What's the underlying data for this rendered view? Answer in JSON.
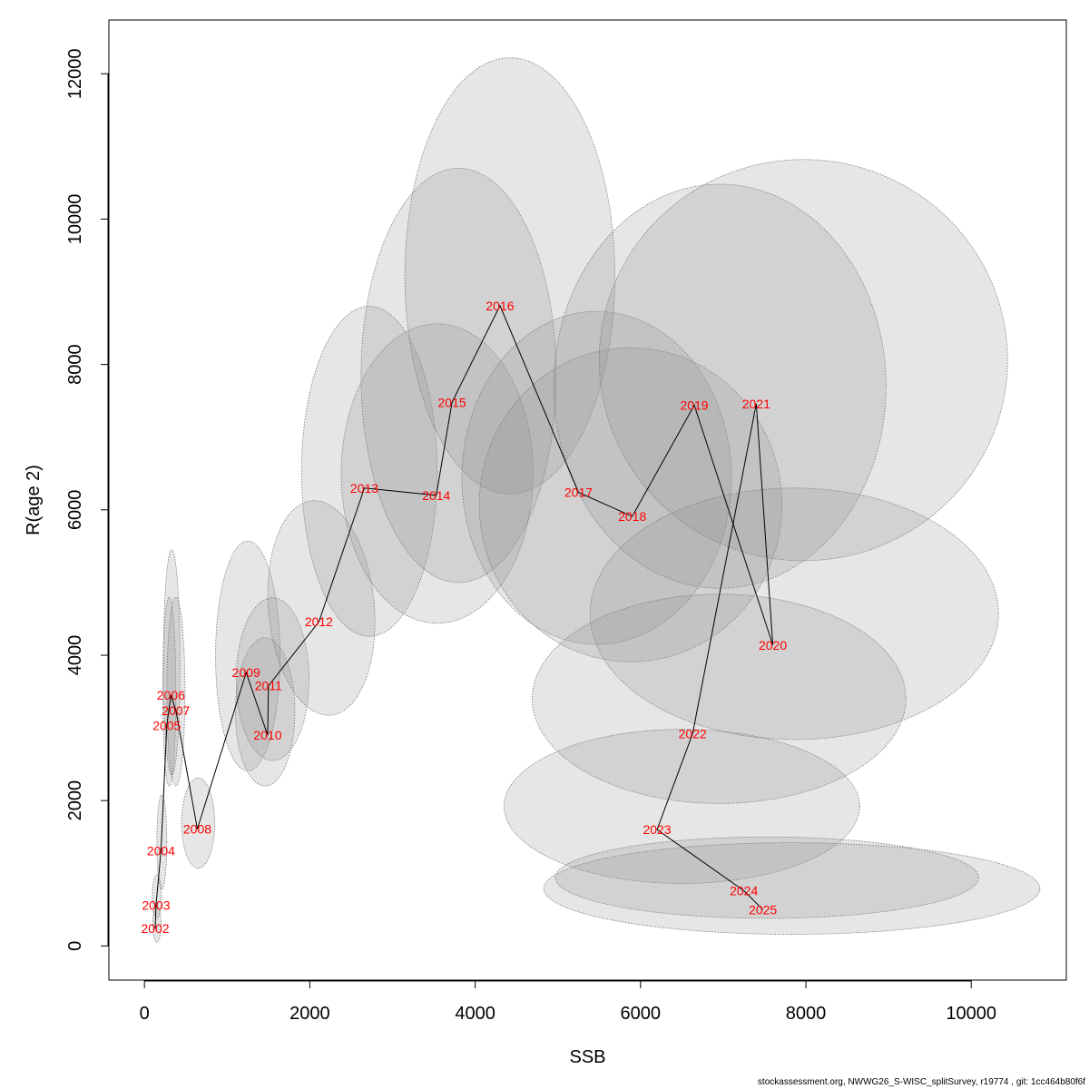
{
  "chart_data": {
    "type": "scatter",
    "xlabel": "SSB",
    "ylabel": "R(age 2)",
    "xlim": [
      -430,
      11150
    ],
    "ylim": [
      -470,
      12740
    ],
    "x_ticks": [
      0,
      2000,
      4000,
      6000,
      8000,
      10000
    ],
    "y_ticks": [
      0,
      2000,
      4000,
      6000,
      8000,
      10000,
      12000
    ],
    "grid": false,
    "series_line_color": "#000000",
    "label_color": "#ff0000",
    "ellipse_fill": "rgba(140,140,140,0.22)",
    "points": [
      {
        "year": "2002",
        "ssb": 130,
        "r": 240,
        "ellipse": {
          "cx": 150,
          "cy": 300,
          "rx": 50,
          "ry": 250,
          "angle": 0
        }
      },
      {
        "year": "2003",
        "ssb": 140,
        "r": 560,
        "ellipse": {
          "cx": 150,
          "cy": 680,
          "rx": 55,
          "ry": 300,
          "angle": 0
        }
      },
      {
        "year": "2004",
        "ssb": 200,
        "r": 1310,
        "ellipse": {
          "cx": 210,
          "cy": 1430,
          "rx": 60,
          "ry": 650,
          "angle": 0
        }
      },
      {
        "year": "2005",
        "ssb": 270,
        "r": 3030,
        "ellipse": {
          "cx": 300,
          "cy": 3500,
          "rx": 80,
          "ry": 1300,
          "angle": 0
        }
      },
      {
        "year": "2006",
        "ssb": 320,
        "r": 3450,
        "ellipse": {
          "cx": 330,
          "cy": 3900,
          "rx": 100,
          "ry": 1550,
          "angle": 0
        }
      },
      {
        "year": "2007",
        "ssb": 380,
        "r": 3240,
        "ellipse": {
          "cx": 380,
          "cy": 3500,
          "rx": 110,
          "ry": 1300,
          "angle": 0
        }
      },
      {
        "year": "2008",
        "ssb": 640,
        "r": 1610,
        "ellipse": {
          "cx": 650,
          "cy": 1690,
          "rx": 200,
          "ry": 620,
          "angle": 0
        }
      },
      {
        "year": "2009",
        "ssb": 1230,
        "r": 3760,
        "ellipse": {
          "cx": 1250,
          "cy": 3990,
          "rx": 390,
          "ry": 1580,
          "angle": 0
        }
      },
      {
        "year": "2010",
        "ssb": 1490,
        "r": 2900,
        "ellipse": {
          "cx": 1460,
          "cy": 3220,
          "rx": 360,
          "ry": 1020,
          "angle": 0
        }
      },
      {
        "year": "2011",
        "ssb": 1500,
        "r": 3580,
        "ellipse": {
          "cx": 1550,
          "cy": 3670,
          "rx": 440,
          "ry": 1120,
          "angle": 0
        }
      },
      {
        "year": "2012",
        "ssb": 2110,
        "r": 4460,
        "ellipse": {
          "cx": 2140,
          "cy": 4650,
          "rx": 640,
          "ry": 1480,
          "angle": -5
        }
      },
      {
        "year": "2013",
        "ssb": 2660,
        "r": 6300,
        "ellipse": {
          "cx": 2720,
          "cy": 6530,
          "rx": 820,
          "ry": 2270,
          "angle": 0
        }
      },
      {
        "year": "2014",
        "ssb": 3530,
        "r": 6200,
        "ellipse": {
          "cx": 3540,
          "cy": 6500,
          "rx": 1160,
          "ry": 2060,
          "angle": 0
        }
      },
      {
        "year": "2015",
        "ssb": 3720,
        "r": 7480,
        "ellipse": {
          "cx": 3800,
          "cy": 7850,
          "rx": 1180,
          "ry": 2850,
          "angle": 0
        }
      },
      {
        "year": "2016",
        "ssb": 4300,
        "r": 8810,
        "ellipse": {
          "cx": 4420,
          "cy": 9220,
          "rx": 1270,
          "ry": 3000,
          "angle": 0
        }
      },
      {
        "year": "2017",
        "ssb": 5250,
        "r": 6240,
        "ellipse": {
          "cx": 5470,
          "cy": 6440,
          "rx": 1630,
          "ry": 2290,
          "angle": 0
        }
      },
      {
        "year": "2018",
        "ssb": 5900,
        "r": 5910,
        "ellipse": {
          "cx": 5880,
          "cy": 6070,
          "rx": 1830,
          "ry": 2160,
          "angle": 0
        }
      },
      {
        "year": "2019",
        "ssb": 6650,
        "r": 7440,
        "ellipse": {
          "cx": 6960,
          "cy": 7700,
          "rx": 2010,
          "ry": 2780,
          "angle": 0
        }
      },
      {
        "year": "2020",
        "ssb": 7600,
        "r": 4140,
        "ellipse": {
          "cx": 7860,
          "cy": 4570,
          "rx": 2470,
          "ry": 1730,
          "angle": 0
        }
      },
      {
        "year": "2021",
        "ssb": 7400,
        "r": 7460,
        "ellipse": {
          "cx": 7970,
          "cy": 8060,
          "rx": 2470,
          "ry": 2760,
          "angle": 0
        }
      },
      {
        "year": "2022",
        "ssb": 6630,
        "r": 2920,
        "ellipse": {
          "cx": 6950,
          "cy": 3400,
          "rx": 2260,
          "ry": 1440,
          "angle": 0
        }
      },
      {
        "year": "2023",
        "ssb": 6200,
        "r": 1600,
        "ellipse": {
          "cx": 6500,
          "cy": 1920,
          "rx": 2150,
          "ry": 1060,
          "angle": 0
        }
      },
      {
        "year": "2024",
        "ssb": 7250,
        "r": 760,
        "ellipse": {
          "cx": 7530,
          "cy": 940,
          "rx": 2560,
          "ry": 560,
          "angle": 0
        }
      },
      {
        "year": "2025",
        "ssb": 7480,
        "r": 500,
        "ellipse": {
          "cx": 7830,
          "cy": 790,
          "rx": 3000,
          "ry": 630,
          "angle": 0
        }
      }
    ]
  },
  "footer": "stockassessment.org, NWWG26_S-WISC_splitSurvey, r19774 , git: 1cc464b80f6f"
}
